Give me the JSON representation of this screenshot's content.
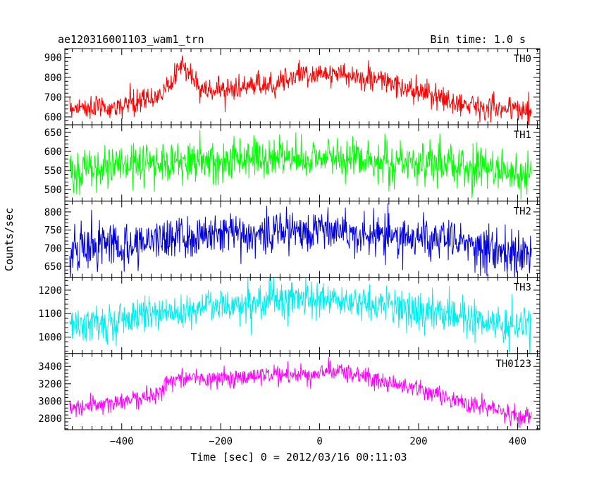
{
  "header": {
    "object_name": "ae120316001103_wam1_trn",
    "bin_time": "Bin time: 1.0 s"
  },
  "chart_data": {
    "type": "line",
    "title": "ae120316001103_wam1_trn",
    "xlabel": "Time [sec] 0 = 2012/03/16 00:11:03",
    "ylabel": "Counts/sec",
    "xlim": [
      -515,
      445
    ],
    "x_ticks": [
      -400,
      -200,
      0,
      200,
      400
    ],
    "x_tick_labels": [
      "−400",
      "−200",
      "0",
      "200",
      "400"
    ],
    "grid": false,
    "panels": [
      {
        "name": "TH0",
        "color": "#ff0000",
        "ylim": [
          560,
          945
        ],
        "y_ticks": [
          600,
          700,
          800,
          900
        ],
        "profile": [
          [
            -505,
            650
          ],
          [
            -420,
            645
          ],
          [
            -340,
            690
          ],
          [
            -300,
            760
          ],
          [
            -280,
            880
          ],
          [
            -262,
            820
          ],
          [
            -240,
            735
          ],
          [
            -160,
            745
          ],
          [
            -100,
            765
          ],
          [
            -60,
            800
          ],
          [
            0,
            825
          ],
          [
            40,
            810
          ],
          [
            120,
            790
          ],
          [
            200,
            720
          ],
          [
            280,
            670
          ],
          [
            360,
            645
          ],
          [
            428,
            630
          ]
        ],
        "noise": 30
      },
      {
        "name": "TH1",
        "color": "#00ff00",
        "ylim": [
          470,
          670
        ],
        "y_ticks": [
          500,
          550,
          600,
          650
        ],
        "profile": [
          [
            -505,
            545
          ],
          [
            -420,
            560
          ],
          [
            -300,
            575
          ],
          [
            -150,
            580
          ],
          [
            0,
            585
          ],
          [
            150,
            575
          ],
          [
            300,
            560
          ],
          [
            428,
            535
          ]
        ],
        "noise": 28
      },
      {
        "name": "TH2",
        "color": "#0000dd",
        "ylim": [
          620,
          830
        ],
        "y_ticks": [
          650,
          700,
          750,
          800
        ],
        "profile": [
          [
            -505,
            700
          ],
          [
            -400,
            712
          ],
          [
            -250,
            735
          ],
          [
            -100,
            745
          ],
          [
            0,
            755
          ],
          [
            100,
            740
          ],
          [
            250,
            720
          ],
          [
            350,
            700
          ],
          [
            428,
            680
          ]
        ],
        "noise": 30
      },
      {
        "name": "TH3",
        "color": "#00eeee",
        "ylim": [
          930,
          1255
        ],
        "y_ticks": [
          1000,
          1100,
          1200
        ],
        "profile": [
          [
            -505,
            1050
          ],
          [
            -400,
            1075
          ],
          [
            -300,
            1110
          ],
          [
            -150,
            1150
          ],
          [
            0,
            1160
          ],
          [
            150,
            1130
          ],
          [
            300,
            1080
          ],
          [
            428,
            1040
          ]
        ],
        "noise": 40
      },
      {
        "name": "TH0123",
        "color": "#ff00ff",
        "ylim": [
          2670,
          3550
        ],
        "y_ticks": [
          2800,
          3000,
          3200,
          3400
        ],
        "profile": [
          [
            -505,
            2920
          ],
          [
            -400,
            2990
          ],
          [
            -330,
            3080
          ],
          [
            -290,
            3280
          ],
          [
            -200,
            3250
          ],
          [
            -120,
            3280
          ],
          [
            0,
            3320
          ],
          [
            30,
            3360
          ],
          [
            100,
            3260
          ],
          [
            200,
            3150
          ],
          [
            300,
            2960
          ],
          [
            428,
            2800
          ]
        ],
        "noise": 55
      }
    ]
  }
}
